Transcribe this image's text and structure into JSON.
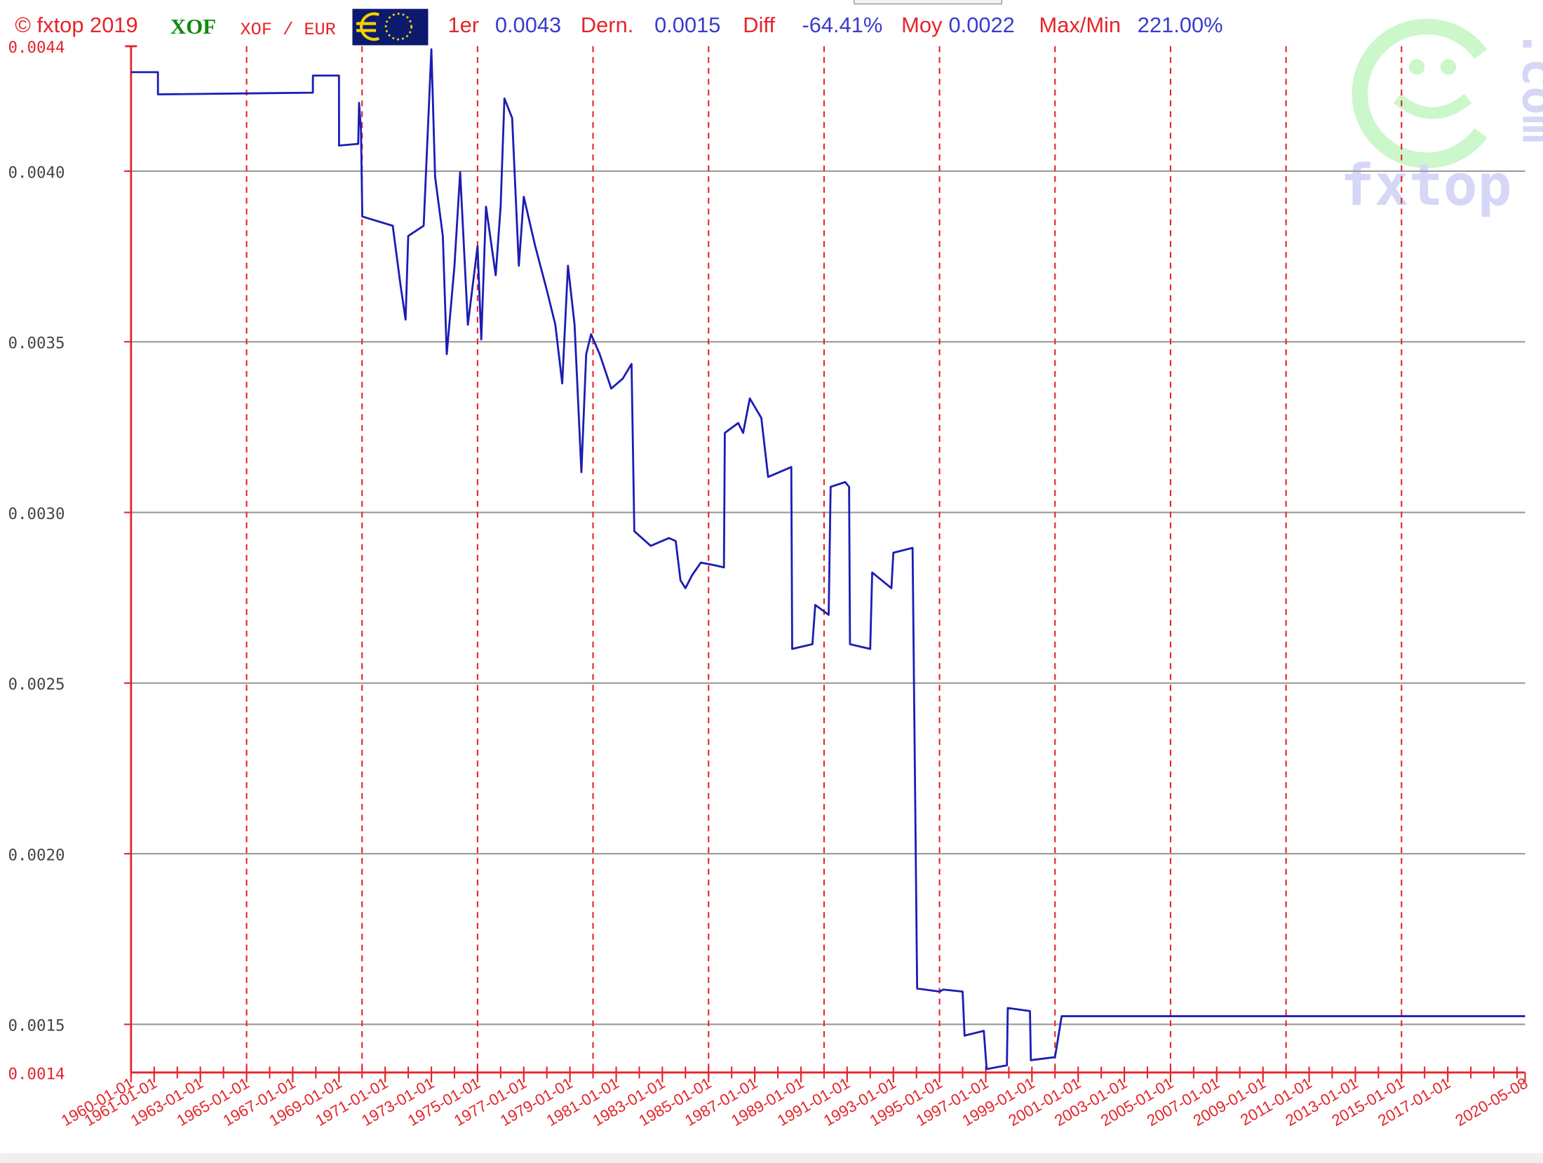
{
  "header": [
    {
      "text": "© fxtop 2019"
    },
    {
      "text": "XOF"
    },
    {
      "text": "XOF / EUR"
    },
    {
      "text": "1er"
    },
    {
      "text": "0.0043"
    },
    {
      "text": "Dern."
    },
    {
      "text": "0.0015"
    },
    {
      "text": "Diff"
    },
    {
      "text": "-64.41%"
    },
    {
      "text": "Moy"
    },
    {
      "text": "0.0022"
    },
    {
      "text": "Max/Min"
    },
    {
      "text": "221.00%"
    }
  ],
  "watermark": {
    "name": "fxtop",
    "suffix": ".com"
  },
  "chart_data": {
    "type": "line",
    "color": "#1c1cb4",
    "x": [
      "1960-01-01",
      "1961-03-01",
      "1961-03-02",
      "1967-11-15",
      "1967-11-16",
      "1969-01-01",
      "1969-01-02",
      "1969-11-01",
      "1969-11-15",
      "1969-12-15",
      "1970-01-05",
      "1971-05-01",
      "1971-09-01",
      "1971-11-20",
      "1972-01-01",
      "1972-09-01",
      "1973-01-01",
      "1973-03-01",
      "1973-07-01",
      "1973-09-01",
      "1974-01-01",
      "1974-04-01",
      "1974-08-01",
      "1975-01-01",
      "1975-03-01",
      "1975-05-15",
      "1975-10-15",
      "1976-01-01",
      "1976-03-01",
      "1976-07-01",
      "1976-10-15",
      "1977-01-01",
      "1977-07-01",
      "1978-01-01",
      "1978-05-15",
      "1978-09-01",
      "1978-12-01",
      "1979-03-15",
      "1979-07-01",
      "1979-09-15",
      "1979-12-01",
      "1980-04-15",
      "1980-10-15",
      "1981-04-15",
      "1981-09-01",
      "1981-10-15",
      "1982-07-01",
      "1983-04-15",
      "1983-08-01",
      "1983-10-15",
      "1984-01-01",
      "1984-04-15",
      "1984-09-01",
      "1985-04-15",
      "1985-09-01",
      "1985-09-15",
      "1986-04-15",
      "1986-07-01",
      "1986-10-15",
      "1987-04-15",
      "1987-08-01",
      "1988-08-01",
      "1988-08-15",
      "1989-07-01",
      "1989-08-15",
      "1990-03-15",
      "1990-04-15",
      "1990-12-01",
      "1991-02-01",
      "1991-02-15",
      "1992-01-01",
      "1992-02-01",
      "1992-12-01",
      "1993-01-01",
      "1993-11-01",
      "1994-01-12",
      "1995-01-01",
      "1995-03-01",
      "1996-01-01",
      "1996-02-01",
      "1996-12-01",
      "1997-01-15",
      "1997-12-01",
      "1997-12-15",
      "1998-12-01",
      "1998-12-15",
      "2000-01-01",
      "2000-04-15",
      "2020-05-08"
    ],
    "values": [
      0.00429,
      0.00429,
      0.004225,
      0.00423,
      0.00428,
      0.00428,
      0.004075,
      0.00408,
      0.0042,
      0.00412,
      0.003867,
      0.00384,
      0.003666,
      0.003565,
      0.00381,
      0.00384,
      0.004357,
      0.003983,
      0.00381,
      0.003464,
      0.003723,
      0.003997,
      0.00355,
      0.00378,
      0.003507,
      0.003896,
      0.003695,
      0.003896,
      0.004213,
      0.004156,
      0.003723,
      0.003925,
      0.00378,
      0.003651,
      0.00355,
      0.003378,
      0.003723,
      0.00355,
      0.003118,
      0.003464,
      0.003522,
      0.003464,
      0.003363,
      0.003392,
      0.003435,
      0.002945,
      0.002902,
      0.002925,
      0.002916,
      0.002801,
      0.002778,
      0.002816,
      0.002853,
      0.002845,
      0.002839,
      0.003233,
      0.003262,
      0.003233,
      0.003334,
      0.003277,
      0.003104,
      0.003133,
      0.0026,
      0.002614,
      0.002729,
      0.0027,
      0.003075,
      0.003089,
      0.003075,
      0.002614,
      0.0026,
      0.002824,
      0.002778,
      0.002882,
      0.002896,
      0.001605,
      0.001596,
      0.001602,
      0.001596,
      0.001467,
      0.001481,
      0.001369,
      0.00138,
      0.001548,
      0.001539,
      0.001395,
      0.001404,
      0.001524,
      0.001524
    ],
    "xlim": [
      "1960-01-01",
      "2020-05-08"
    ],
    "xticks": [
      "1960-01-01",
      "1961-01-01",
      "1963-01-01",
      "1965-01-01",
      "1967-01-01",
      "1969-01-01",
      "1971-01-01",
      "1973-01-01",
      "1975-01-01",
      "1977-01-01",
      "1979-01-01",
      "1981-01-01",
      "1983-01-01",
      "1985-01-01",
      "1987-01-01",
      "1989-01-01",
      "1991-01-01",
      "1993-01-01",
      "1995-01-01",
      "1997-01-01",
      "1999-01-01",
      "2001-01-01",
      "2003-01-01",
      "2005-01-01",
      "2007-01-01",
      "2009-01-01",
      "2011-01-01",
      "2013-01-01",
      "2015-01-01",
      "2017-01-01",
      "2020-05-08"
    ],
    "x_grid": [
      "1965-01-01",
      "1970-01-01",
      "1975-01-01",
      "1980-01-01",
      "1985-01-01",
      "1990-01-01",
      "1995-01-01",
      "2000-01-01",
      "2005-01-01",
      "2010-01-01",
      "2015-01-01"
    ],
    "ylim": [
      0.001359,
      0.004366
    ],
    "yticks": [
      {
        "value": 0.004366,
        "label": "0.0044"
      },
      {
        "value": 0.004,
        "label": "0.0040"
      },
      0.0035,
      {
        "value": 0.003,
        "label": "0.0030"
      },
      0.0025,
      {
        "value": 0.002,
        "label": "0.0020"
      },
      0.0015,
      {
        "value": 0.001359,
        "label": "0.0014"
      }
    ],
    "grid": true
  }
}
